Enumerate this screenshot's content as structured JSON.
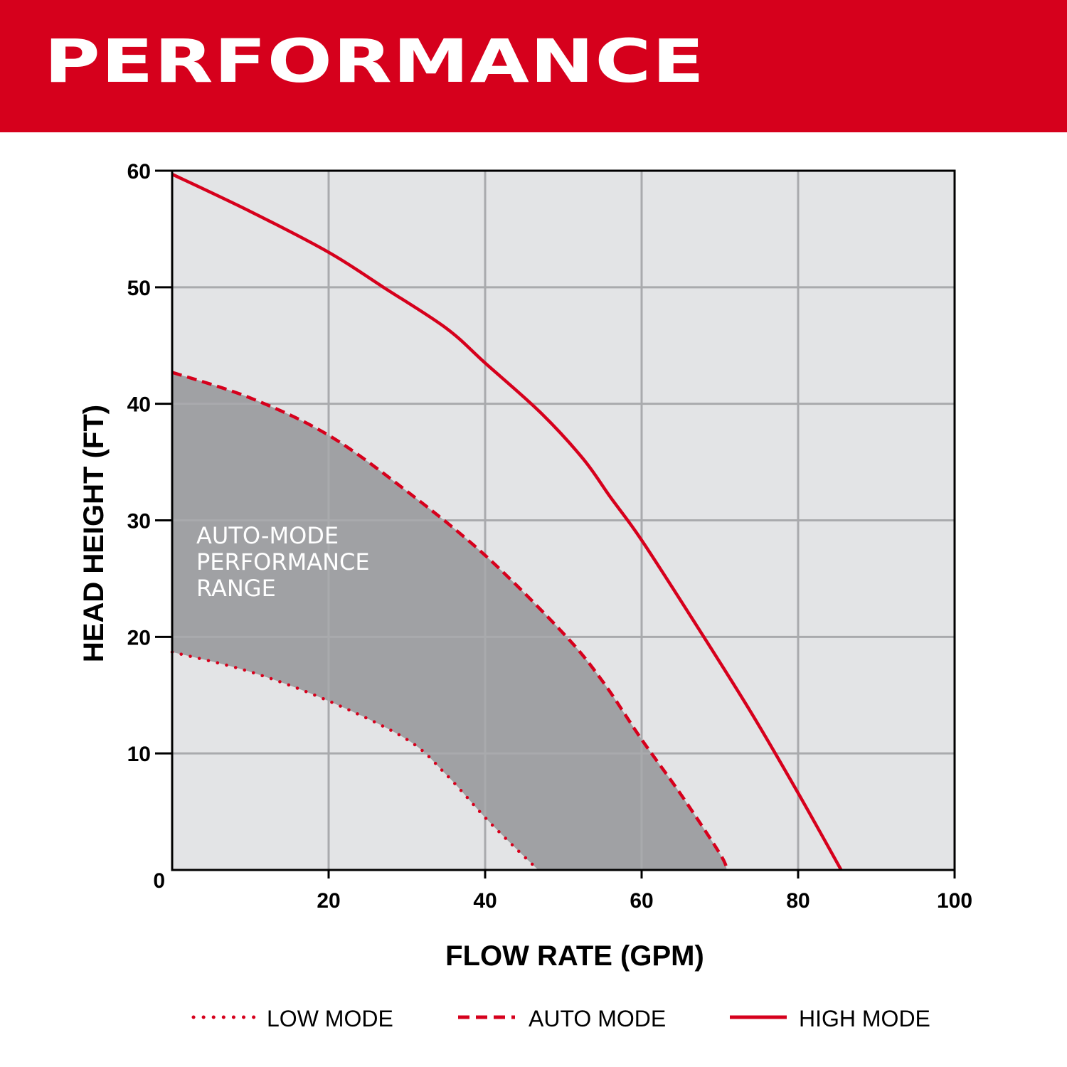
{
  "header": {
    "title": "PERFORMANCE"
  },
  "chart_data": {
    "type": "line",
    "xlabel": "FLOW RATE (GPM)",
    "ylabel": "HEAD HEIGHT (FT)",
    "xlim": [
      0,
      100
    ],
    "ylim": [
      0,
      60
    ],
    "xticks": [
      20,
      40,
      60,
      80,
      100
    ],
    "yticks": [
      0,
      10,
      20,
      30,
      40,
      50,
      60
    ],
    "grid": true,
    "legend_placement": "bottom",
    "colors": {
      "series": "#d6001c",
      "plot_bg": "#e3e4e6",
      "range_fill": "#a0a1a4",
      "grid": "#a9aaad",
      "banner": "#d6001c"
    },
    "annotation": [
      "AUTO-MODE",
      "PERFORMANCE",
      "RANGE"
    ],
    "series": [
      {
        "name": "LOW MODE",
        "style": "dotted",
        "x": [
          0,
          10,
          20,
          30,
          35,
          40,
          44,
          46.8
        ],
        "y": [
          18.7,
          17,
          14.5,
          11.2,
          8.2,
          4.5,
          1.8,
          0
        ]
      },
      {
        "name": "AUTO MODE",
        "style": "dashed",
        "x": [
          0,
          10,
          20,
          30,
          40,
          50,
          55,
          60,
          65,
          70,
          70.9
        ],
        "y": [
          42.7,
          40.5,
          37.3,
          32.5,
          27,
          20.3,
          16.2,
          11.2,
          6.5,
          1.4,
          0
        ]
      },
      {
        "name": "HIGH MODE",
        "style": "solid",
        "x": [
          0,
          10,
          20,
          27,
          35,
          40,
          47,
          52.5,
          56,
          60,
          67,
          74,
          80,
          85.5
        ],
        "y": [
          59.7,
          56.5,
          53,
          50,
          46.5,
          43.5,
          39.3,
          35.3,
          32,
          28.3,
          21,
          13.5,
          6.6,
          0
        ]
      }
    ]
  }
}
